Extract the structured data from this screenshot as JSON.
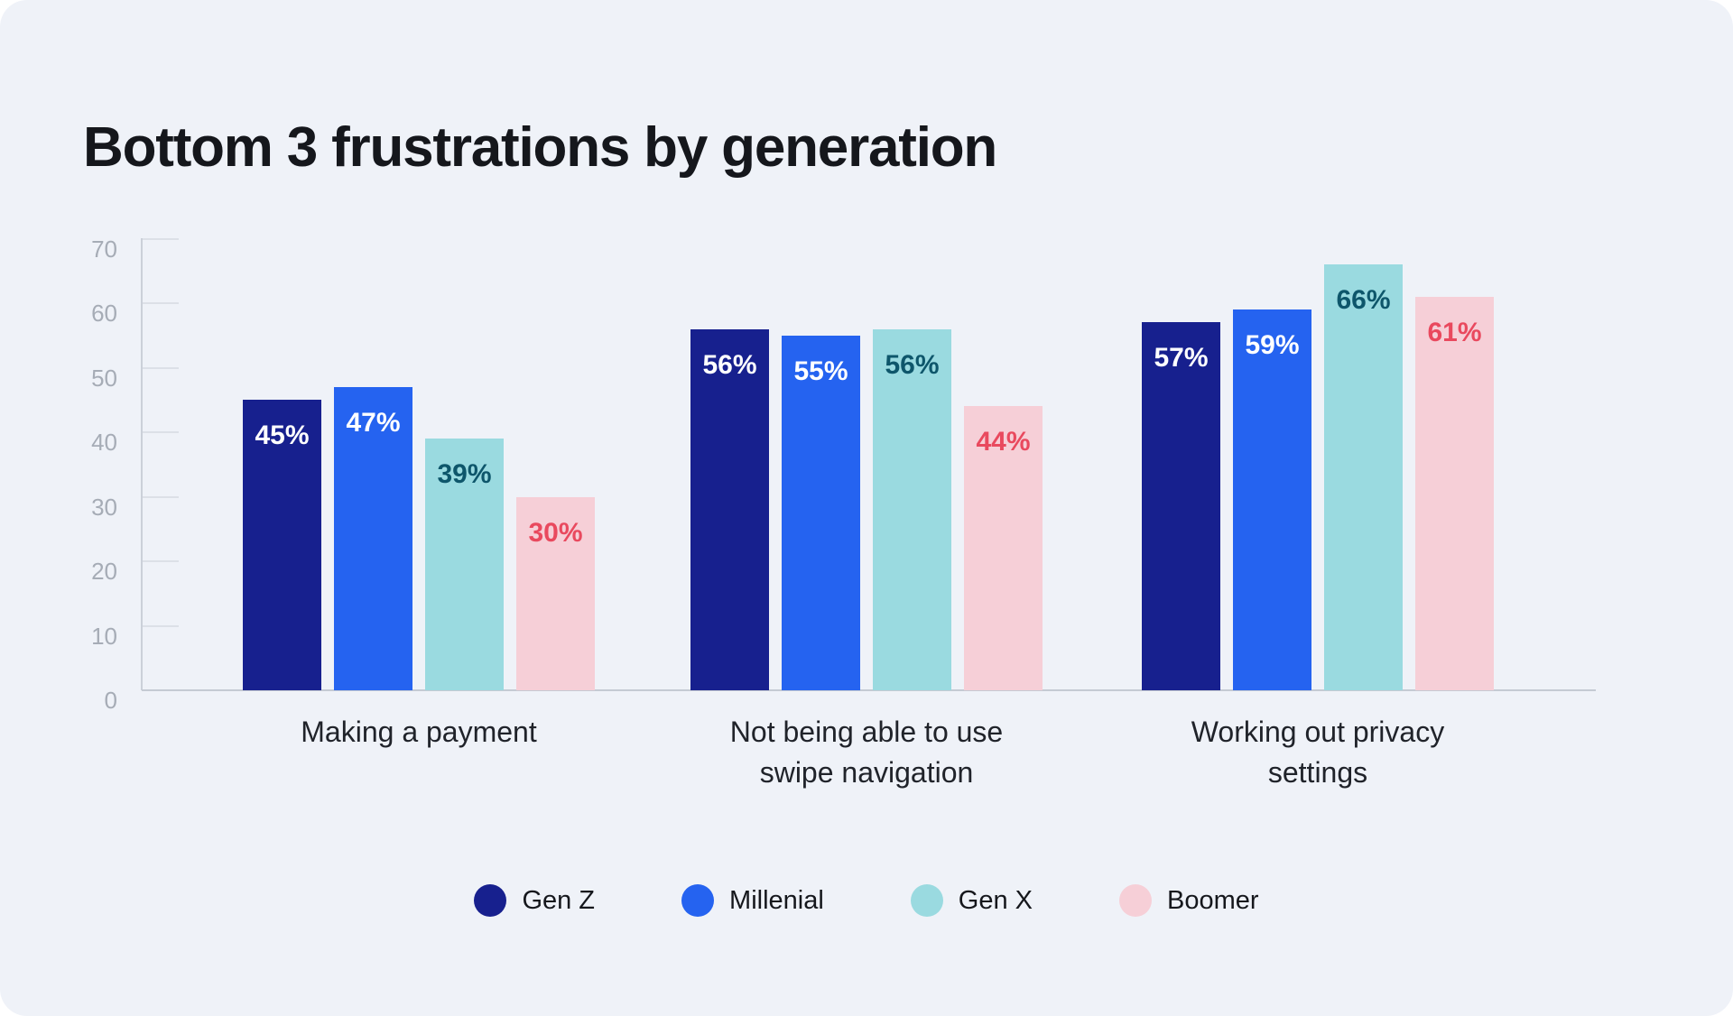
{
  "chart_data": {
    "type": "bar",
    "title": "Bottom 3 frustrations by generation",
    "categories": [
      {
        "lines": [
          "Making a payment"
        ]
      },
      {
        "lines": [
          "Not being able to use",
          "swipe navigation"
        ]
      },
      {
        "lines": [
          "Working out privacy",
          "settings"
        ]
      }
    ],
    "series": [
      {
        "name": "Gen Z",
        "color": "#17208E",
        "label_color": "#FFFFFF",
        "values": [
          45,
          56,
          57
        ]
      },
      {
        "name": "Millenial",
        "color": "#2563F0",
        "label_color": "#FFFFFF",
        "values": [
          47,
          55,
          59
        ]
      },
      {
        "name": "Gen X",
        "color": "#9ADAE0",
        "label_color": "#0E566B",
        "values": [
          39,
          56,
          66
        ]
      },
      {
        "name": "Boomer",
        "color": "#F6CFD7",
        "label_color": "#E9495E",
        "values": [
          30,
          44,
          61
        ]
      }
    ],
    "value_suffix": "%",
    "y_axis": {
      "min": 0,
      "max": 70,
      "step": 10,
      "tick_labels": [
        "0",
        "10",
        "20",
        "30",
        "40",
        "50",
        "60",
        "70"
      ]
    },
    "legend": {
      "position": "bottom",
      "entries": [
        "Gen Z",
        "Millenial",
        "Gen X",
        "Boomer"
      ]
    },
    "grid": "short-y-ticks-only",
    "ylim": [
      0,
      70
    ]
  },
  "theme": {
    "page_background": "#FFFFFF",
    "card_background": "#EFF2F8",
    "title_color": "#15171C",
    "axis_line_color": "#C5CAD3",
    "tick_mark_color": "#DCE0E7",
    "tick_label_color": "#A6ACB6",
    "category_label_color": "#20232A",
    "legend_label_color": "#15171C"
  }
}
